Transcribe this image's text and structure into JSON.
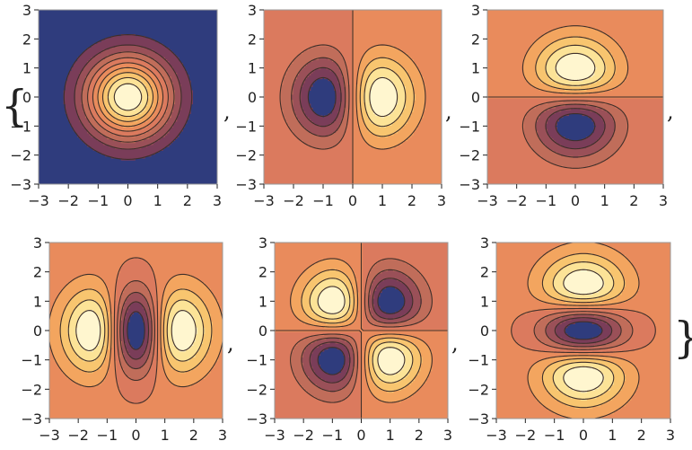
{
  "palette": {
    "levels": [
      "#2f3c7d",
      "#7a3d59",
      "#9a5058",
      "#c06d5a",
      "#db7a5e",
      "#e98b5c",
      "#f3a55f",
      "#f8c56f",
      "#fce397",
      "#fff6cf"
    ],
    "contour_line": "#3e2f2a",
    "frame": "#999999",
    "text": "#222222"
  },
  "delimiters": {
    "open": "{",
    "close": "}",
    "separator": ","
  },
  "chart_data": [
    {
      "type": "contour",
      "function": "exp(-(x^2+y^2)/2)",
      "panel": "row 1, column 1",
      "xlim": [
        -3,
        3
      ],
      "ylim": [
        -3,
        3
      ],
      "x_ticks": [
        "−3",
        "−2",
        "−1",
        "0",
        "1",
        "2",
        "3"
      ],
      "y_ticks": [
        "−3",
        "−2",
        "−1",
        "0",
        "1",
        "2",
        "3"
      ],
      "contour_levels": 10,
      "grid": false
    },
    {
      "type": "contour",
      "function": "x·exp(-(x^2+y^2)/2)",
      "panel": "row 1, column 2",
      "xlim": [
        -3,
        3
      ],
      "ylim": [
        -3,
        3
      ],
      "x_ticks": [
        "−3",
        "−2",
        "−1",
        "0",
        "1",
        "2",
        "3"
      ],
      "y_ticks": [
        "−3",
        "−2",
        "−1",
        "0",
        "1",
        "2",
        "3"
      ],
      "contour_levels": 10,
      "grid": false
    },
    {
      "type": "contour",
      "function": "y·exp(-(x^2+y^2)/2)",
      "panel": "row 1, column 3",
      "xlim": [
        -3,
        3
      ],
      "ylim": [
        -3,
        3
      ],
      "x_ticks": [
        "−3",
        "−2",
        "−1",
        "0",
        "1",
        "2",
        "3"
      ],
      "y_ticks": [
        "−3",
        "−2",
        "−1",
        "0",
        "1",
        "2",
        "3"
      ],
      "contour_levels": 10,
      "grid": false
    },
    {
      "type": "contour",
      "function": "(x^2-0.6)·exp(-(x^2+y^2)/2)",
      "panel": "row 2, column 1",
      "xlim": [
        -3,
        3
      ],
      "ylim": [
        -3,
        3
      ],
      "x_ticks": [
        "−3",
        "−2",
        "−1",
        "0",
        "1",
        "2",
        "3"
      ],
      "y_ticks": [
        "−3",
        "−2",
        "−1",
        "0",
        "1",
        "2",
        "3"
      ],
      "contour_levels": 10,
      "grid": false
    },
    {
      "type": "contour",
      "function": "-x·y·exp(-(x^2+y^2)/2)",
      "panel": "row 2, column 2",
      "xlim": [
        -3,
        3
      ],
      "ylim": [
        -3,
        3
      ],
      "x_ticks": [
        "−3",
        "−2",
        "−1",
        "0",
        "1",
        "2",
        "3"
      ],
      "y_ticks": [
        "−3",
        "−2",
        "−1",
        "0",
        "1",
        "2",
        "3"
      ],
      "contour_levels": 10,
      "grid": false
    },
    {
      "type": "contour",
      "function": "(y^2-0.6)·exp(-(x^2+y^2)/2)",
      "panel": "row 2, column 3",
      "xlim": [
        -3,
        3
      ],
      "ylim": [
        -3,
        3
      ],
      "x_ticks": [
        "−3",
        "−2",
        "−1",
        "0",
        "1",
        "2",
        "3"
      ],
      "y_ticks": [
        "−3",
        "−2",
        "−1",
        "0",
        "1",
        "2",
        "3"
      ],
      "contour_levels": 10,
      "grid": false
    }
  ]
}
